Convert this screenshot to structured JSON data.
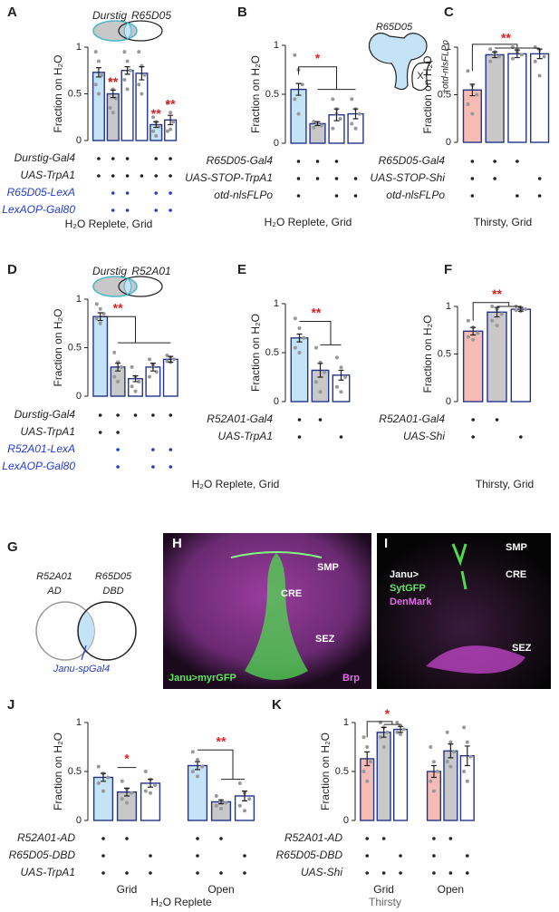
{
  "chart_data": [
    {
      "type": "bar",
      "label": "A",
      "ylabel": "Fraction on H₂O",
      "venn": [
        "Durstig",
        "R65D05"
      ],
      "annotations": [
        "**",
        "**",
        "**"
      ],
      "values": [
        0.73,
        0.5,
        0.75,
        0.72,
        0.17,
        0.22
      ],
      "errors": [
        0.05,
        0.04,
        0.04,
        0.07,
        0.03,
        0.05
      ],
      "colors": [
        "#c5e3f6",
        "#c8c8c8",
        "#ffffff",
        "#ffffff",
        "#c5e3f6",
        "#ffffff"
      ],
      "points": [
        [
          0.95,
          0.85,
          0.7,
          0.6,
          0.5
        ],
        [
          0.65,
          0.55,
          0.45,
          0.35,
          0.3
        ],
        [
          0.95,
          0.85,
          0.75,
          0.65,
          0.55
        ],
        [
          0.95,
          0.8,
          0.7,
          0.6,
          0.5
        ],
        [
          0.25,
          0.2,
          0.15,
          0.1,
          0.05
        ],
        [
          0.4,
          0.3,
          0.2,
          0.1,
          0.12
        ]
      ],
      "ylim": [
        0,
        1
      ],
      "yticks": [
        0,
        0.5,
        1
      ],
      "genotype": [
        {
          "name": "Durstig-Gal4",
          "color": "#222222",
          "dots": [
            true,
            true,
            true,
            false,
            true,
            true
          ]
        },
        {
          "name": "UAS-TrpA1",
          "color": "#222222",
          "dots": [
            true,
            true,
            true,
            true,
            true,
            true
          ]
        },
        {
          "name": "R65D05-LexA",
          "color": "#1f3bd6",
          "dots": [
            false,
            true,
            true,
            false,
            true,
            true
          ]
        },
        {
          "name": "LexAOP-Gal80",
          "color": "#1f3bd6",
          "dots": [
            false,
            true,
            true,
            false,
            true,
            true
          ]
        }
      ],
      "footer": "H₂O Replete, Grid",
      "footer_color": "#222222"
    },
    {
      "type": "bar",
      "label": "B",
      "ylabel": "Fraction on H₂O",
      "schematic": [
        "R65D05",
        "+otd-nlsFLPo"
      ],
      "annotations": [
        "*"
      ],
      "values": [
        0.55,
        0.2,
        0.29,
        0.3
      ],
      "errors": [
        0.06,
        0.02,
        0.06,
        0.05
      ],
      "colors": [
        "#c5e3f6",
        "#c8c8c8",
        "#ffffff",
        "#ffffff"
      ],
      "points": [
        [
          0.9,
          0.75,
          0.6,
          0.45,
          0.3
        ],
        [
          0.22,
          0.2,
          0.18,
          0.16,
          0.21
        ],
        [
          0.45,
          0.35,
          0.25,
          0.15,
          0.3
        ],
        [
          0.45,
          0.35,
          0.3,
          0.2,
          0.15
        ]
      ],
      "ylim": [
        0,
        1
      ],
      "yticks": [
        0,
        0.5,
        1
      ],
      "genotype": [
        {
          "name": "R65D05-Gal4",
          "color": "#222222",
          "dots": [
            true,
            true,
            true,
            false
          ]
        },
        {
          "name": "UAS-STOP-TrpA1",
          "color": "#222222",
          "dots": [
            true,
            true,
            true,
            true
          ]
        },
        {
          "name": "otd-nlsFLPo",
          "color": "#222222",
          "dots": [
            true,
            false,
            true,
            true
          ]
        }
      ],
      "footer": "H₂O Replete, Grid",
      "footer_color": "#222222"
    },
    {
      "type": "bar",
      "label": "C",
      "ylabel": "Fraction on H₂O",
      "annotations": [
        "**"
      ],
      "values": [
        0.55,
        0.92,
        0.93,
        0.93
      ],
      "errors": [
        0.06,
        0.03,
        0.04,
        0.05
      ],
      "colors": [
        "#f6bcb4",
        "#c8c8c8",
        "#ffffff",
        "#ffffff"
      ],
      "points": [
        [
          0.75,
          0.6,
          0.5,
          0.4,
          0.3
        ],
        [
          0.98,
          0.95,
          0.9,
          0.85,
          0.92
        ],
        [
          1,
          0.97,
          0.92,
          0.88,
          0.95
        ],
        [
          1,
          0.97,
          0.9,
          0.85,
          0.7
        ]
      ],
      "ylim": [
        0,
        1
      ],
      "yticks": [
        0,
        0.5,
        1
      ],
      "genotype": [
        {
          "name": "R65D05-Gal4",
          "color": "#222222",
          "dots": [
            true,
            true,
            true,
            false
          ]
        },
        {
          "name": "UAS-STOP-Shi",
          "color": "#222222",
          "dots": [
            true,
            true,
            false,
            true
          ]
        },
        {
          "name": "otd-nlsFLPo",
          "color": "#222222",
          "dots": [
            true,
            false,
            true,
            true
          ]
        }
      ],
      "footer": "Thirsty, Grid",
      "footer_color": "#222222"
    },
    {
      "type": "bar",
      "label": "D",
      "ylabel": "Fraction on H₂O",
      "venn": [
        "Durstig",
        "R52A01"
      ],
      "annotations": [
        "**"
      ],
      "values": [
        0.82,
        0.3,
        0.18,
        0.3,
        0.38
      ],
      "errors": [
        0.04,
        0.04,
        0.03,
        0.04,
        0.03
      ],
      "colors": [
        "#c5e3f6",
        "#c8c8c8",
        "#ffffff",
        "#ffffff",
        "#ffffff"
      ],
      "points": [
        [
          0.95,
          0.9,
          0.85,
          0.8,
          0.75
        ],
        [
          0.45,
          0.35,
          0.3,
          0.2,
          0.15
        ],
        [
          0.3,
          0.2,
          0.15,
          0.1,
          0.05
        ],
        [
          0.38,
          0.32,
          0.25,
          0.2,
          0.3
        ],
        [
          0.42,
          0.4,
          0.38,
          0.36,
          0.35
        ]
      ],
      "ylim": [
        0,
        1
      ],
      "yticks": [
        0,
        0.5,
        1
      ],
      "genotype": [
        {
          "name": "Durstig-Gal4",
          "color": "#222222",
          "dots": [
            true,
            true,
            true,
            true,
            true
          ]
        },
        {
          "name": "UAS-TrpA1",
          "color": "#222222",
          "dots": [
            true,
            true,
            false,
            false,
            false
          ]
        },
        {
          "name": "R52A01-LexA",
          "color": "#1f3bd6",
          "dots": [
            false,
            true,
            false,
            true,
            true
          ]
        },
        {
          "name": "LexAOP-Gal80",
          "color": "#1f3bd6",
          "dots": [
            false,
            true,
            false,
            true,
            true
          ]
        }
      ],
      "footer": "H₂O Replete, Grid",
      "footer_color": "#222222"
    },
    {
      "type": "bar",
      "label": "E",
      "ylabel": "Fraction on H₂O",
      "annotations": [
        "**"
      ],
      "values": [
        0.65,
        0.32,
        0.27
      ],
      "errors": [
        0.04,
        0.07,
        0.05
      ],
      "colors": [
        "#c5e3f6",
        "#c8c8c8",
        "#ffffff"
      ],
      "points": [
        [
          0.85,
          0.75,
          0.65,
          0.55,
          0.5
        ],
        [
          0.55,
          0.4,
          0.3,
          0.2,
          0.1
        ],
        [
          0.45,
          0.35,
          0.25,
          0.15,
          0.1
        ]
      ],
      "ylim": [
        0,
        1
      ],
      "yticks": [
        0,
        0.5,
        1
      ],
      "genotype": [
        {
          "name": "R52A01-Gal4",
          "color": "#222222",
          "dots": [
            true,
            true,
            false
          ]
        },
        {
          "name": "UAS-TrpA1",
          "color": "#222222",
          "dots": [
            true,
            false,
            true
          ]
        }
      ]
    },
    {
      "type": "bar",
      "label": "F",
      "ylabel": "Fraction on H₂O",
      "annotations": [
        "**"
      ],
      "values": [
        0.74,
        0.94,
        0.97
      ],
      "errors": [
        0.04,
        0.05,
        0.02
      ],
      "colors": [
        "#f6bcb4",
        "#c8c8c8",
        "#ffffff"
      ],
      "points": [
        [
          0.85,
          0.78,
          0.72,
          0.68,
          0.65
        ],
        [
          1,
          0.97,
          0.92,
          0.85,
          0.8
        ],
        [
          1,
          0.99,
          0.97,
          0.96,
          0.95
        ]
      ],
      "ylim": [
        0,
        1
      ],
      "yticks": [
        0,
        0.5,
        1
      ],
      "genotype": [
        {
          "name": "R52A01-Gal4",
          "color": "#222222",
          "dots": [
            true,
            true,
            false
          ]
        },
        {
          "name": "UAS-Shi",
          "color": "#222222",
          "dots": [
            true,
            false,
            true
          ]
        }
      ],
      "footer": "Thirsty, Grid",
      "footer_color": "#222222"
    },
    {
      "type": "bar",
      "label": "J",
      "ylabel": "Fraction on H₂O",
      "annotations": [
        "*",
        "**"
      ],
      "groups": [
        "Grid",
        "Open"
      ],
      "values": [
        0.44,
        0.29,
        0.38,
        0.56,
        0.19,
        0.25
      ],
      "errors": [
        0.04,
        0.04,
        0.04,
        0.04,
        0.02,
        0.05
      ],
      "colors": [
        "#c5e3f6",
        "#c8c8c8",
        "#ffffff",
        "#c5e3f6",
        "#c8c8c8",
        "#ffffff"
      ],
      "points": [
        [
          0.55,
          0.48,
          0.44,
          0.38,
          0.3
        ],
        [
          0.4,
          0.32,
          0.28,
          0.22,
          0.18
        ],
        [
          0.5,
          0.42,
          0.36,
          0.3,
          0.28
        ],
        [
          0.7,
          0.62,
          0.55,
          0.5,
          0.45
        ],
        [
          0.25,
          0.2,
          0.18,
          0.15,
          0.12
        ],
        [
          0.38,
          0.28,
          0.22,
          0.15,
          0.1
        ]
      ],
      "ylim": [
        0,
        1
      ],
      "yticks": [
        0,
        0.5,
        1
      ],
      "genotype": [
        {
          "name": "R52A01-AD",
          "color": "#222222",
          "dots": [
            true,
            true,
            false,
            true,
            true,
            false
          ]
        },
        {
          "name": "R65D05-DBD",
          "color": "#222222",
          "dots": [
            true,
            false,
            true,
            true,
            false,
            true
          ]
        },
        {
          "name": "UAS-TrpA1",
          "color": "#222222",
          "dots": [
            true,
            true,
            true,
            true,
            true,
            true
          ]
        }
      ],
      "footer": "H₂O Replete",
      "footer_color": "#222222"
    },
    {
      "type": "bar",
      "label": "K",
      "ylabel": "Fraction on H₂O",
      "annotations": [
        "*"
      ],
      "groups": [
        "Grid",
        "Open"
      ],
      "values": [
        0.63,
        0.9,
        0.93,
        0.5,
        0.71,
        0.66
      ],
      "errors": [
        0.07,
        0.05,
        0.03,
        0.06,
        0.07,
        0.1
      ],
      "colors": [
        "#f6bcb4",
        "#c8c8c8",
        "#ffffff",
        "#f6bcb4",
        "#c8c8c8",
        "#ffffff"
      ],
      "points": [
        [
          0.85,
          0.75,
          0.6,
          0.5,
          0.4
        ],
        [
          1,
          0.95,
          0.9,
          0.85,
          0.75
        ],
        [
          1,
          0.97,
          0.93,
          0.9,
          0.88
        ],
        [
          0.75,
          0.6,
          0.5,
          0.4,
          0.3
        ],
        [
          0.9,
          0.8,
          0.7,
          0.6,
          0.55
        ],
        [
          0.95,
          0.8,
          0.65,
          0.5,
          0.4
        ]
      ],
      "ylim": [
        0,
        1
      ],
      "yticks": [
        0,
        0.5,
        1
      ],
      "genotype": [
        {
          "name": "R52A01-AD",
          "color": "#222222",
          "dots": [
            true,
            true,
            false,
            true,
            true,
            false
          ]
        },
        {
          "name": "R65D05-DBD",
          "color": "#222222",
          "dots": [
            true,
            false,
            true,
            true,
            false,
            true
          ]
        },
        {
          "name": "UAS-Shi",
          "color": "#222222",
          "dots": [
            true,
            true,
            true,
            true,
            true,
            true
          ]
        }
      ],
      "footer": "Thirsty",
      "footer_color": "#666666"
    }
  ],
  "panel_g": {
    "label": "G",
    "left": [
      "R52A01",
      "AD"
    ],
    "right": [
      "R65D05",
      "DBD"
    ],
    "name": "Janu-spGal4"
  },
  "panel_h": {
    "label": "H",
    "regions": [
      "SMP",
      "CRE",
      "SEZ"
    ],
    "stain": "Janu>myrGFP",
    "counterstain": "Brp"
  },
  "panel_i": {
    "label": "I",
    "regions": [
      "SMP",
      "CRE",
      "SEZ"
    ],
    "driver": "Janu>",
    "stain": "SytGFP",
    "counterstain": "DenMark"
  }
}
